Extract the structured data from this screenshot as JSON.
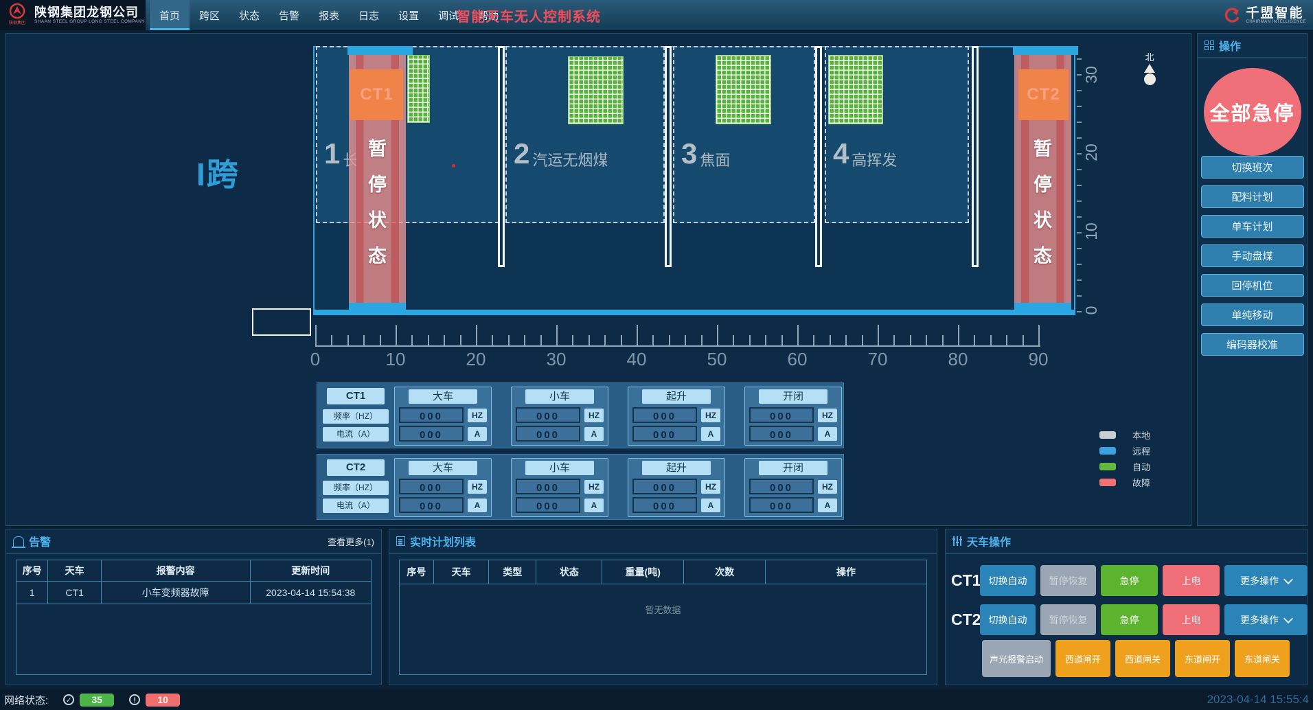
{
  "topbar": {
    "company": {
      "name": "陕钢集团龙钢公司",
      "subtitle": "SHAAN STEEL GROUP LONG STEEL COMPANY",
      "badge": "陕钢集团"
    },
    "nav": {
      "items": [
        "首页",
        "跨区",
        "状态",
        "告警",
        "报表",
        "日志",
        "设置",
        "调试",
        "帮助"
      ],
      "active": "首页"
    },
    "system_title": "智能天车无人控制系统",
    "brand": {
      "name": "千盟智能",
      "subtitle": "CHAIRMAN INTELLIGENCE"
    }
  },
  "yard": {
    "span_label": "I跨",
    "compass_label": "北",
    "zones": [
      {
        "num": "1",
        "name": "长"
      },
      {
        "num": "2",
        "name": "汽运无烟煤"
      },
      {
        "num": "3",
        "name": "焦面"
      },
      {
        "num": "4",
        "name": "高挥发"
      }
    ],
    "cranes": [
      {
        "id": "CT1",
        "status": "暂停状态"
      },
      {
        "id": "CT2",
        "status": "暂停状态"
      }
    ],
    "x_axis_labels": [
      "0",
      "10",
      "20",
      "30",
      "40",
      "50",
      "60",
      "70",
      "80",
      "90"
    ],
    "y_axis_labels": [
      "30",
      "20",
      "10",
      "0"
    ]
  },
  "telemetry": {
    "freq_unit": "HZ",
    "amp_unit": "A",
    "blocks": [
      {
        "id": "CT1",
        "freq_label": "频率（HZ）",
        "amp_label": "电流（A）",
        "groups": [
          {
            "name": "大车",
            "freq": "000",
            "amp": "000"
          },
          {
            "name": "小车",
            "freq": "000",
            "amp": "000"
          },
          {
            "name": "起升",
            "freq": "000",
            "amp": "000"
          },
          {
            "name": "开闭",
            "freq": "000",
            "amp": "000"
          }
        ]
      },
      {
        "id": "CT2",
        "freq_label": "频率（HZ）",
        "amp_label": "电流（A）",
        "groups": [
          {
            "name": "大车",
            "freq": "000",
            "amp": "000"
          },
          {
            "name": "小车",
            "freq": "000",
            "amp": "000"
          },
          {
            "name": "起升",
            "freq": "000",
            "amp": "000"
          },
          {
            "name": "开闭",
            "freq": "000",
            "amp": "000"
          }
        ]
      }
    ]
  },
  "legend": {
    "items": [
      {
        "label": "本地",
        "color": "#c9ced3"
      },
      {
        "label": "远程",
        "color": "#3da2e0"
      },
      {
        "label": "自动",
        "color": "#63b93e"
      },
      {
        "label": "故障",
        "color": "#ef7173"
      }
    ]
  },
  "ops": {
    "title": "操作",
    "estop_label": "全部急停",
    "buttons": [
      "切换班次",
      "配料计划",
      "单车计划",
      "手动盘煤",
      "回停机位",
      "单纯移动",
      "编码器校准"
    ]
  },
  "alarms": {
    "title": "告警",
    "view_more": "查看更多(1)",
    "headers": [
      "序号",
      "天车",
      "报警内容",
      "更新时间"
    ],
    "rows": [
      [
        "1",
        "CT1",
        "小车变频器故障",
        "2023-04-14 15:54:38"
      ]
    ]
  },
  "plans": {
    "title": "实时计划列表",
    "headers": [
      "序号",
      "天车",
      "类型",
      "状态",
      "重量(吨)",
      "次数",
      "操作"
    ],
    "empty_text": "暂无数据"
  },
  "crane_ops": {
    "title": "天车操作",
    "row_buttons": [
      "切换自动",
      "暂停恢复",
      "急停",
      "上电",
      "更多操作"
    ],
    "rows": [
      {
        "id": "CT1"
      },
      {
        "id": "CT2"
      }
    ],
    "extra_buttons": [
      "声光报警启动",
      "西道闸开",
      "西道闸关",
      "东道闸开",
      "东道闸关"
    ]
  },
  "statusbar": {
    "network_label": "网络状态:",
    "ok_count": "35",
    "alert_count": "10",
    "timestamp": "2023-04-14 15:55:4"
  }
}
